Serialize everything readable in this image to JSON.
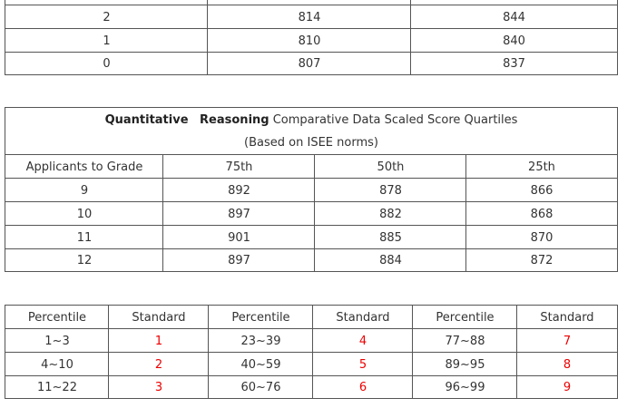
{
  "tables": [
    {
      "rows": [
        [
          "2",
          "814",
          "844"
        ],
        [
          "1",
          "810",
          "840"
        ],
        [
          "0",
          "807",
          "837"
        ]
      ]
    },
    {
      "title": {
        "bold": "Quantitative Reasoning",
        "text": "Comparative Data Scaled Score Quartiles",
        "subtitle": "(Based on ISEE norms)"
      },
      "header": [
        "Applicants to Grade",
        "75th",
        "50th",
        "25th"
      ],
      "rows": [
        [
          "9",
          "892",
          "878",
          "866"
        ],
        [
          "10",
          "897",
          "882",
          "868"
        ],
        [
          "11",
          "901",
          "885",
          "870"
        ],
        [
          "12",
          "897",
          "884",
          "872"
        ]
      ]
    },
    {
      "header": [
        "Percentile",
        "Standard",
        "Percentile",
        "Standard",
        "Percentile",
        "Standard"
      ],
      "rows": [
        [
          "1~3",
          "1",
          "23~39",
          "4",
          "77~88",
          "7"
        ],
        [
          "4~10",
          "2",
          "40~59",
          "5",
          "89~95",
          "8"
        ],
        [
          "11~22",
          "3",
          "60~76",
          "6",
          "96~99",
          "9"
        ]
      ]
    }
  ]
}
